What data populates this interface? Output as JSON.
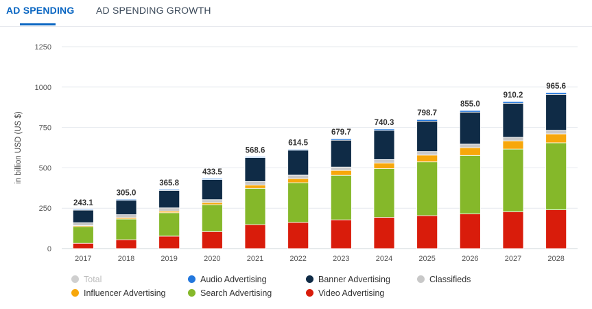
{
  "tabs": [
    {
      "label": "AD SPENDING",
      "active": true
    },
    {
      "label": "AD SPENDING GROWTH",
      "active": false
    }
  ],
  "chart_data": {
    "type": "bar",
    "stacked": true,
    "ylabel": "in billion USD (US $)",
    "ylim": [
      0,
      1250
    ],
    "yticks": [
      0,
      250,
      500,
      750,
      1000,
      1250
    ],
    "grid": true,
    "legend_position": "bottom",
    "categories": [
      "2017",
      "2018",
      "2019",
      "2020",
      "2021",
      "2022",
      "2023",
      "2024",
      "2025",
      "2026",
      "2027",
      "2028"
    ],
    "totals": [
      243.1,
      305.0,
      365.8,
      433.5,
      568.6,
      614.5,
      679.7,
      740.3,
      798.7,
      855.0,
      910.2,
      965.6
    ],
    "totals_labels": [
      "243.1",
      "305.0",
      "365.8",
      "433.5",
      "568.6",
      "614.5",
      "679.7",
      "740.3",
      "798.7",
      "855.0",
      "910.2",
      "965.6"
    ],
    "series": [
      {
        "name": "Video Advertising",
        "color": "#d91c0b",
        "values": [
          33,
          55,
          77,
          105,
          148,
          162,
          178,
          193,
          204,
          215,
          228,
          240
        ]
      },
      {
        "name": "Search Advertising",
        "color": "#85b82a",
        "values": [
          103,
          128,
          145,
          167,
          225,
          246,
          276,
          302,
          333,
          362,
          388,
          415
        ]
      },
      {
        "name": "Influencer Advertising",
        "color": "#f7a70b",
        "values": [
          6,
          8,
          10,
          13,
          20,
          25,
          30,
          35,
          42,
          48,
          51,
          55
        ]
      },
      {
        "name": "Classifieds",
        "color": "#c8c8c8",
        "values": [
          18,
          19,
          20,
          18,
          22,
          22,
          21,
          21,
          22,
          22,
          22,
          23
        ]
      },
      {
        "name": "Banner Advertising",
        "color": "#0f2b46",
        "values": [
          78,
          89,
          108,
          124,
          148,
          154,
          166,
          181,
          188,
          198,
          211,
          222
        ]
      },
      {
        "name": "Audio Advertising",
        "color": "#2277dd",
        "values": [
          5,
          6,
          6,
          6.5,
          5.6,
          5.5,
          8.7,
          8.3,
          9.7,
          10,
          10.2,
          10.6
        ]
      }
    ],
    "legend": [
      {
        "name": "Total",
        "color": "#cfcfcf",
        "disabled": true
      },
      {
        "name": "Audio Advertising",
        "color": "#2277dd"
      },
      {
        "name": "Banner Advertising",
        "color": "#0f2b46"
      },
      {
        "name": "Classifieds",
        "color": "#c8c8c8"
      },
      {
        "name": "Influencer Advertising",
        "color": "#f7a70b"
      },
      {
        "name": "Search Advertising",
        "color": "#85b82a"
      },
      {
        "name": "Video Advertising",
        "color": "#d91c0b"
      }
    ]
  }
}
